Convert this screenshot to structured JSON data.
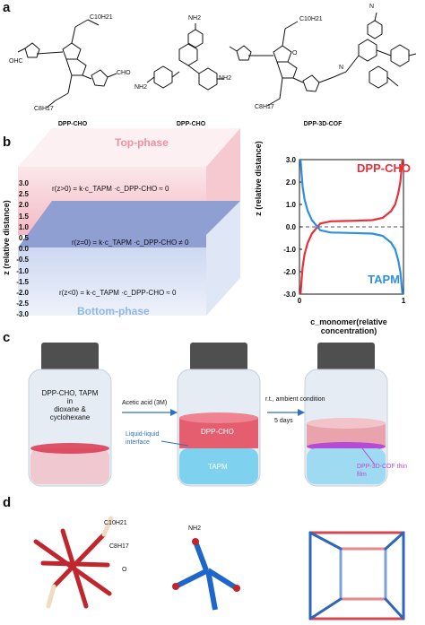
{
  "panels": {
    "a": "a",
    "b": "b",
    "c": "c",
    "d": "d"
  },
  "panel_a": {
    "compound1": "DPP-CHO",
    "compound2": "DPP-CHO",
    "compound3": "DPP-3D-COF",
    "c10h21": "C10H21",
    "c8h17": "C8H17",
    "ohc": "OHC",
    "cho": "CHO",
    "nh2": "NH2",
    "n": "N",
    "o": "O"
  },
  "panel_b": {
    "top_phase": "Top-phase",
    "bottom_phase": "Bottom-phase",
    "z_axis_label": "z (relative distance)",
    "cube_ticks": [
      "3.0",
      "2.5",
      "2.0",
      "1.5",
      "1.0",
      "0.5",
      "0.0",
      "-0.5",
      "-1.0",
      "-1.5",
      "-2.0",
      "-2.5",
      "-3.0"
    ],
    "eq_top": "r(z>0) = k·c_TAPM ·c_DPP-CHO ≈ 0",
    "eq_mid": "r(z=0) = k·c_TAPM ·c_DPP-CHO ≠ 0",
    "eq_bot": "r(z<0) = k·c_TAPM ·c_DPP-CHO ≈ 0",
    "colors": {
      "top": "#f4b9c4",
      "mid": "#8f9fd2",
      "bottom": "#c9d5ef",
      "red": "#e8303a",
      "blue": "#2e8ee0"
    }
  },
  "chart_data": {
    "type": "line",
    "xlabel": "c_monomer(relative concentration)",
    "ylabel": "z (relative distance)",
    "x_ticks": [
      "0",
      "1"
    ],
    "y_ticks": [
      "3.0",
      "2.0",
      "1.0",
      "0.0",
      "-1.0",
      "-2.0",
      "-3.0"
    ],
    "xlim": [
      0,
      1
    ],
    "ylim": [
      -3.0,
      3.0
    ],
    "series": [
      {
        "name": "DPP-CHO",
        "color": "#e8303a",
        "x": [
          0.01,
          0.02,
          0.03,
          0.05,
          0.08,
          0.12,
          0.2,
          0.3,
          0.5,
          0.7,
          0.8,
          0.88,
          0.92,
          0.95,
          0.97,
          0.98,
          0.99
        ],
        "y": [
          -3.0,
          -2.4,
          -1.8,
          -1.2,
          -0.7,
          -0.3,
          0.15,
          0.25,
          0.27,
          0.3,
          0.4,
          0.7,
          1.0,
          1.5,
          2.0,
          2.5,
          3.0
        ]
      },
      {
        "name": "TAPM",
        "color": "#2e8ee0",
        "x": [
          0.01,
          0.02,
          0.03,
          0.05,
          0.08,
          0.12,
          0.2,
          0.3,
          0.5,
          0.7,
          0.8,
          0.88,
          0.92,
          0.95,
          0.97,
          0.98,
          0.99
        ],
        "y": [
          3.0,
          2.4,
          1.8,
          1.2,
          0.7,
          0.3,
          -0.15,
          -0.25,
          -0.27,
          -0.3,
          -0.4,
          -0.7,
          -1.0,
          -1.5,
          -2.0,
          -2.5,
          -3.0
        ]
      }
    ],
    "reference_line": {
      "y": 0.0,
      "style": "dashed"
    }
  },
  "panel_c": {
    "vial1_text": [
      "DPP-CHO, TAPM",
      "in",
      "dioxane &",
      "cyclohexane"
    ],
    "arrow1_label": "Acetic acid (3M)",
    "arrow2_label": "r.t., ambient condition",
    "arrow2_sub": "5 days",
    "interface_label": [
      "Liquid-liquid",
      "interface"
    ],
    "vial2_top": "DPP-CHO",
    "vial2_bottom": "TAPM",
    "film_label": [
      "DPP-3D-COF thin",
      "film"
    ]
  },
  "panel_d": {
    "c10h21": "C10H21",
    "c8h17": "C8H17",
    "nh2": "NH2",
    "o": "O"
  }
}
